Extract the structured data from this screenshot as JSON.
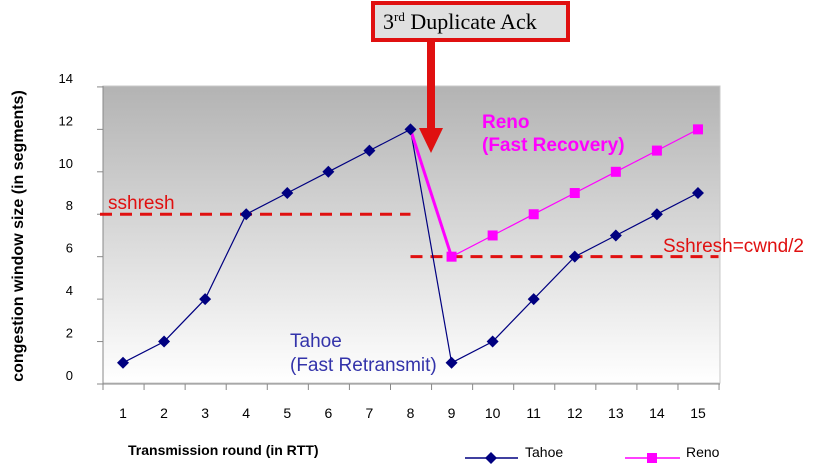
{
  "chart_data": {
    "type": "line",
    "xlabel": "Transmission round (in RTT)",
    "ylabel": "congestion window size (in segments)",
    "x_ticks": [
      "1",
      "2",
      "3",
      "4",
      "5",
      "6",
      "7",
      "8",
      "9",
      "10",
      "11",
      "12",
      "13",
      "14",
      "15"
    ],
    "y_ticks": [
      "0",
      "2",
      "4",
      "6",
      "8",
      "10",
      "12",
      "14"
    ],
    "xlim": [
      1,
      15
    ],
    "ylim": [
      0,
      14
    ],
    "grid": false,
    "legend_position": "bottom",
    "series": [
      {
        "name": "Tahoe",
        "color": "#000080",
        "marker": "diamond",
        "x": [
          1,
          2,
          3,
          4,
          5,
          6,
          7,
          8,
          9,
          10,
          11,
          12,
          13,
          14,
          15
        ],
        "y": [
          1,
          2,
          4,
          8,
          9,
          10,
          11,
          12,
          1,
          2,
          4,
          6,
          7,
          8,
          9
        ]
      },
      {
        "name": "Reno",
        "color": "#ff00ff",
        "marker": "square",
        "x": [
          9,
          10,
          11,
          12,
          13,
          14,
          15
        ],
        "y": [
          6,
          7,
          8,
          9,
          10,
          11,
          12
        ]
      }
    ],
    "thresholds": [
      {
        "label": "sshresh",
        "y": 8,
        "x_from": 0,
        "x_to": 8,
        "color": "#e01010"
      },
      {
        "label": "Sshresh=cwnd/2",
        "y": 6,
        "x_from": 8,
        "x_to": 15.5,
        "color": "#e01010"
      }
    ],
    "annotations": {
      "callout_main": "3",
      "callout_sup": "rd",
      "callout_rest": " Duplicate Ack",
      "reno_line1": "Reno",
      "reno_line2": "(Fast Recovery)",
      "tahoe_line1": "Tahoe",
      "tahoe_line2": "(Fast Retransmit)",
      "reno_color": "#ff00ff",
      "tahoe_color": "#3333aa",
      "callout_color": "#e01010"
    }
  }
}
